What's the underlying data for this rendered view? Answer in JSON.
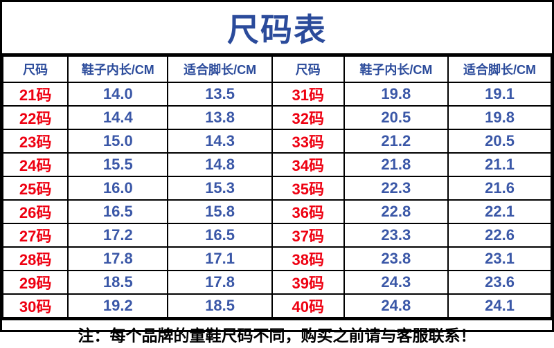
{
  "title": "尺码表",
  "note": "注：每个品牌的童鞋尺码不同，购买之前请与客服联系！",
  "colors": {
    "title_blue": "#2b4b9b",
    "value_blue": "#3a57a7",
    "size_red": "#ee0011",
    "border": "#000000",
    "background": "#ffffff"
  },
  "table": {
    "headers": [
      "尺码",
      "鞋子内长/CM",
      "适合脚长/CM",
      "尺码",
      "鞋子内长/CM",
      "适合脚长/CM"
    ],
    "left_rows": [
      {
        "size": "21码",
        "inner": "14.0",
        "foot": "13.5"
      },
      {
        "size": "22码",
        "inner": "14.4",
        "foot": "13.8"
      },
      {
        "size": "23码",
        "inner": "15.0",
        "foot": "14.3"
      },
      {
        "size": "24码",
        "inner": "15.5",
        "foot": "14.8"
      },
      {
        "size": "25码",
        "inner": "16.0",
        "foot": "15.3"
      },
      {
        "size": "26码",
        "inner": "16.5",
        "foot": "15.8"
      },
      {
        "size": "27码",
        "inner": "17.2",
        "foot": "16.5"
      },
      {
        "size": "28码",
        "inner": "17.8",
        "foot": "17.1"
      },
      {
        "size": "29码",
        "inner": "18.5",
        "foot": "17.8"
      },
      {
        "size": "30码",
        "inner": "19.2",
        "foot": "18.5"
      }
    ],
    "right_rows": [
      {
        "size": "31码",
        "inner": "19.8",
        "foot": "19.1"
      },
      {
        "size": "32码",
        "inner": "20.5",
        "foot": "19.8"
      },
      {
        "size": "33码",
        "inner": "21.2",
        "foot": "20.5"
      },
      {
        "size": "34码",
        "inner": "21.8",
        "foot": "21.1"
      },
      {
        "size": "35码",
        "inner": "22.3",
        "foot": "21.6"
      },
      {
        "size": "36码",
        "inner": "22.8",
        "foot": "22.1"
      },
      {
        "size": "37码",
        "inner": "23.3",
        "foot": "22.6"
      },
      {
        "size": "38码",
        "inner": "23.8",
        "foot": "23.1"
      },
      {
        "size": "39码",
        "inner": "24.3",
        "foot": "23.6"
      },
      {
        "size": "40码",
        "inner": "24.8",
        "foot": "24.1"
      }
    ]
  }
}
